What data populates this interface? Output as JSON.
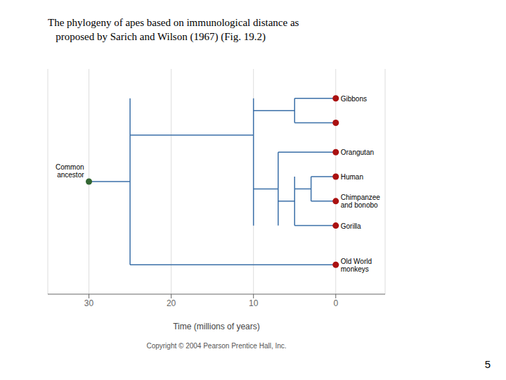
{
  "chart_data": {
    "type": "dendrogram",
    "title": "The phylogeny of apes based on immunological distance as\n   proposed by Sarich and Wilson (1967) (Fig. 19.2)",
    "xlabel": "Time (millions of years)",
    "xlim": [
      35,
      -6
    ],
    "xticks": [
      30,
      20,
      10,
      0
    ],
    "ylim": [
      0.0,
      9.2
    ],
    "grid": true,
    "tick_labels": "x",
    "series": [
      {
        "type": "line",
        "color": "#3a6fa8",
        "segments": [
          {
            "type": "h",
            "x1": 30,
            "x2": 25,
            "y": 4.6
          },
          {
            "type": "v",
            "x": 25,
            "y1": 1.2,
            "y2": 8.0
          },
          {
            "type": "h",
            "x1": 25,
            "x2": 0,
            "y": 1.2
          },
          {
            "type": "h",
            "x1": 25,
            "x2": 10,
            "y": 6.5
          },
          {
            "type": "v",
            "x": 10,
            "y1": 2.8,
            "y2": 8.0
          },
          {
            "type": "h",
            "x1": 10,
            "x2": 5,
            "y": 7.5
          },
          {
            "type": "v",
            "x": 5,
            "y1": 7.0,
            "y2": 8.0
          },
          {
            "type": "h",
            "x1": 5,
            "x2": 0,
            "y": 8.0
          },
          {
            "type": "h",
            "x1": 5,
            "x2": 0,
            "y": 7.0
          },
          {
            "type": "h",
            "x1": 10,
            "x2": 7,
            "y": 4.3
          },
          {
            "type": "v",
            "x": 7,
            "y1": 2.8,
            "y2": 5.8
          },
          {
            "type": "h",
            "x1": 7,
            "x2": 0,
            "y": 5.8
          },
          {
            "type": "h",
            "x1": 7,
            "x2": 5,
            "y": 3.8
          },
          {
            "type": "v",
            "x": 5,
            "y1": 2.8,
            "y2": 4.8
          },
          {
            "type": "h",
            "x1": 5,
            "x2": 0,
            "y": 2.8
          },
          {
            "type": "h",
            "x1": 5,
            "x2": 3,
            "y": 4.3
          },
          {
            "type": "v",
            "x": 3,
            "y1": 3.8,
            "y2": 4.8
          },
          {
            "type": "h",
            "x1": 3,
            "x2": 0,
            "y": 4.8
          },
          {
            "type": "h",
            "x1": 3,
            "x2": 0,
            "y": 3.8
          }
        ]
      },
      {
        "type": "scatter",
        "color": "#aa1111",
        "x": [
          0,
          0,
          0,
          0,
          0,
          0,
          0
        ],
        "values": [
          8.0,
          7.0,
          5.8,
          4.8,
          3.8,
          2.8,
          1.2
        ]
      },
      {
        "type": "scatter",
        "color": "#336633",
        "x": [
          30
        ],
        "values": [
          4.6
        ]
      }
    ],
    "labels": [
      {
        "text": "Gibbons",
        "x": 0,
        "y": 8.0
      },
      {
        "text": "Orangutan",
        "x": 0,
        "y": 5.8
      },
      {
        "text": "Human",
        "x": 0,
        "y": 4.8
      },
      {
        "text": "Chimpanzee\nand bonobo",
        "x": 0,
        "y": 3.8
      },
      {
        "text": "Gorilla",
        "x": 0,
        "y": 2.8
      },
      {
        "text": "Old World\nmonkeys",
        "x": 0,
        "y": 1.2
      }
    ],
    "annotations": [
      {
        "text": "Common\nancestor",
        "x": 30,
        "y": 4.6
      },
      {
        "text": "Copyright © 2004 Pearson Prentice Hall, Inc."
      },
      {
        "text": "5"
      }
    ]
  }
}
